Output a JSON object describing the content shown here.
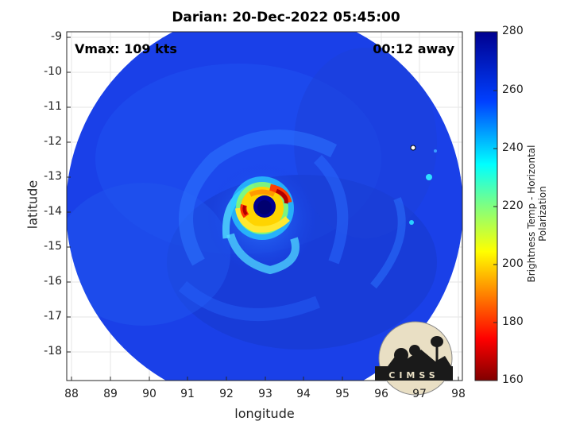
{
  "title": "Darian: 20-Dec-2022 05:45:00",
  "vmax_label": "Vmax: 109 kts",
  "away_label": "00:12 away",
  "xlabel": "longitude",
  "ylabel": "latitude",
  "colorbar_label": "Brightness Temp - Horizontal Polarization",
  "logo_text": "CIMSS",
  "x_ticks": [
    "88",
    "89",
    "90",
    "91",
    "92",
    "93",
    "94",
    "95",
    "96",
    "97",
    "98"
  ],
  "y_ticks": [
    "-9",
    "-10",
    "-11",
    "-12",
    "-13",
    "-14",
    "-15",
    "-16",
    "-17",
    "-18"
  ],
  "cb_ticks": [
    "280",
    "260",
    "240",
    "220",
    "200",
    "180",
    "160"
  ],
  "colors": {
    "cold_ring": "#b00000",
    "eye": "#00008f",
    "background_scan": "#1a40e8",
    "colormap": "jet"
  },
  "map_extent": {
    "lon_min": 87.8,
    "lon_max": 98.1,
    "lat_min": -18.8,
    "lat_max": -8.8
  },
  "storm_center": {
    "lon": 93.1,
    "lat": -13.9
  }
}
